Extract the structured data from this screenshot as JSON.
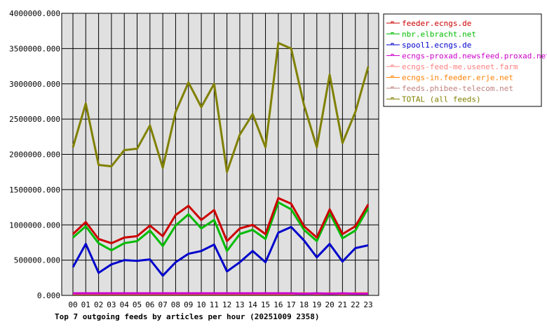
{
  "chart_data": {
    "type": "line",
    "title": "Top 7 outgoing feeds by articles per hour (20251009 2358)",
    "xlabel": "",
    "ylabel": "",
    "ylim": [
      0,
      4000000
    ],
    "yticks": [
      "0.000",
      "500000.000",
      "1000000.000",
      "1500000.000",
      "2000000.000",
      "2500000.000",
      "3000000.000",
      "3500000.000",
      "4000000.000"
    ],
    "categories": [
      "00",
      "01",
      "02",
      "03",
      "04",
      "05",
      "06",
      "07",
      "08",
      "09",
      "10",
      "11",
      "12",
      "13",
      "14",
      "15",
      "16",
      "17",
      "18",
      "19",
      "20",
      "21",
      "22",
      "23"
    ],
    "grid": true,
    "legend_position": "right",
    "plot_background": "#e0e0e0",
    "series": [
      {
        "name": "feeder.ecngs.de",
        "color": "#cc0000",
        "values": [
          870000,
          1040000,
          800000,
          740000,
          820000,
          840000,
          990000,
          840000,
          1140000,
          1270000,
          1070000,
          1210000,
          770000,
          950000,
          1000000,
          870000,
          1380000,
          1300000,
          980000,
          820000,
          1220000,
          870000,
          980000,
          1290000
        ]
      },
      {
        "name": "nbr.elbracht.net",
        "color": "#00bb00",
        "values": [
          820000,
          980000,
          740000,
          640000,
          740000,
          770000,
          920000,
          700000,
          990000,
          1150000,
          950000,
          1070000,
          630000,
          870000,
          930000,
          800000,
          1320000,
          1220000,
          930000,
          770000,
          1170000,
          810000,
          920000,
          1240000
        ]
      },
      {
        "name": "spool1.ecngs.de",
        "color": "#0000cc",
        "values": [
          400000,
          730000,
          320000,
          440000,
          500000,
          490000,
          510000,
          280000,
          470000,
          590000,
          630000,
          720000,
          340000,
          470000,
          630000,
          470000,
          890000,
          970000,
          780000,
          540000,
          730000,
          480000,
          670000,
          710000
        ]
      },
      {
        "name": "ecngs-proxad.newsfeed.proxad.net",
        "color": "#cc00cc",
        "values": [
          30000,
          30000,
          30000,
          30000,
          30000,
          30000,
          30000,
          30000,
          30000,
          30000,
          30000,
          30000,
          30000,
          30000,
          30000,
          30000,
          30000,
          30000,
          25000,
          30000,
          25000,
          30000,
          25000,
          25000
        ]
      },
      {
        "name": "ecngs-feed-me.usenet.farm",
        "color": "#ff8080",
        "values": [
          25000,
          25000,
          25000,
          25000,
          25000,
          25000,
          25000,
          25000,
          25000,
          25000,
          25000,
          25000,
          25000,
          25000,
          25000,
          25000,
          25000,
          25000,
          25000,
          25000,
          25000,
          25000,
          25000,
          25000
        ]
      },
      {
        "name": "ecngs-in.feeder.erje.net",
        "color": "#ff8000",
        "values": [
          20000,
          20000,
          20000,
          20000,
          20000,
          20000,
          20000,
          20000,
          20000,
          20000,
          20000,
          20000,
          20000,
          20000,
          20000,
          20000,
          20000,
          20000,
          30000,
          20000,
          30000,
          20000,
          30000,
          30000
        ]
      },
      {
        "name": "feeds.phibee-telecom.net",
        "color": "#c08080",
        "values": [
          20000,
          20000,
          20000,
          20000,
          20000,
          20000,
          20000,
          20000,
          20000,
          20000,
          20000,
          20000,
          20000,
          20000,
          20000,
          20000,
          20000,
          20000,
          20000,
          20000,
          20000,
          20000,
          20000,
          20000
        ]
      },
      {
        "name": "TOTAL (all feeds)",
        "color": "#808000",
        "values": [
          2100000,
          2720000,
          1850000,
          1830000,
          2060000,
          2080000,
          2410000,
          1810000,
          2600000,
          3020000,
          2670000,
          3000000,
          1750000,
          2280000,
          2570000,
          2100000,
          3580000,
          3500000,
          2700000,
          2100000,
          3130000,
          2160000,
          2600000,
          3240000
        ]
      }
    ]
  }
}
